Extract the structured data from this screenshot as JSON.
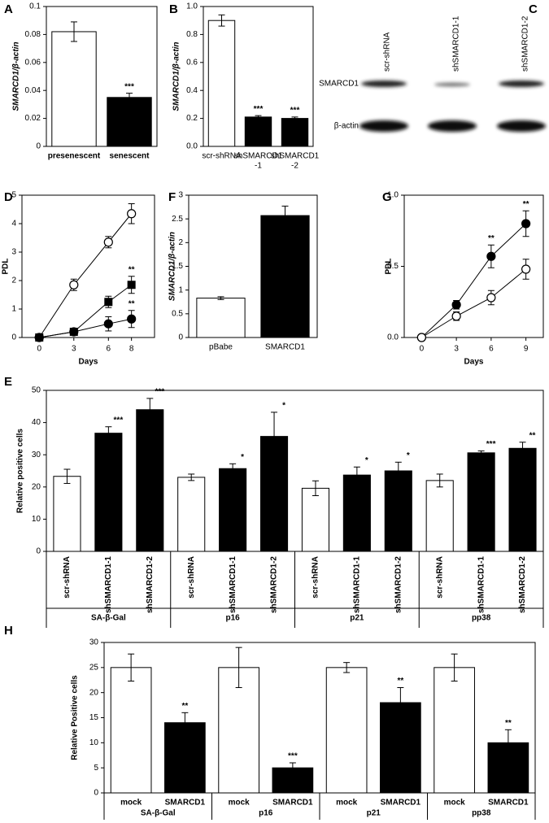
{
  "blot": {
    "panel": "C",
    "lanes": [
      "scr-shRNA",
      "shSMARCD1-1",
      "shSMARCD1-2"
    ],
    "rows": [
      "SMARCD1",
      "β-actin"
    ]
  },
  "chart_data": [
    {
      "panel": "A",
      "type": "bar",
      "ylabel": "SMARCD1/β-actin",
      "categories": [
        "presenescent",
        "senescent"
      ],
      "values": [
        0.082,
        0.035
      ],
      "errors": [
        0.007,
        0.003
      ],
      "colors": [
        "#ffffff",
        "#000000"
      ],
      "significance": [
        null,
        "***"
      ],
      "ylim": [
        0,
        0.1
      ],
      "yticks": [
        0,
        0.02,
        0.04,
        0.06,
        0.08,
        0.1
      ]
    },
    {
      "panel": "B",
      "type": "bar",
      "ylabel": "SMARCD1/β-actin",
      "categories": [
        "scr-shRNA",
        [
          "shSMARCD1",
          "-1"
        ],
        [
          "shSMARCD1",
          "-2"
        ]
      ],
      "values": [
        0.9,
        0.21,
        0.2
      ],
      "errors": [
        0.04,
        0.01,
        0.01
      ],
      "colors": [
        "#ffffff",
        "#000000",
        "#000000"
      ],
      "significance": [
        null,
        "***",
        "***"
      ],
      "ylim": [
        0,
        1
      ],
      "yticks": [
        {
          "value": 0,
          "label": "0.0"
        },
        0.2,
        0.4,
        0.6,
        0.8,
        {
          "value": 1,
          "label": "1.0"
        }
      ]
    },
    {
      "panel": "D",
      "type": "line",
      "xlabel": "Days",
      "ylabel": "PDL",
      "x": [
        0,
        3,
        6,
        8
      ],
      "xlim": [
        -1.5,
        10
      ],
      "xticks": [
        0,
        3,
        6,
        8
      ],
      "ylim": [
        0,
        5
      ],
      "yticks": [
        0,
        1,
        2,
        3,
        4,
        5
      ],
      "series": [
        {
          "marker": "circle",
          "color": "#ffffff",
          "values": [
            0,
            1.85,
            3.35,
            4.35
          ],
          "errors": [
            0.05,
            0.2,
            0.2,
            0.35
          ]
        },
        {
          "marker": "square",
          "color": "#000000",
          "values": [
            0,
            0.2,
            1.25,
            1.85
          ],
          "errors": [
            0.05,
            0.05,
            0.2,
            0.3
          ],
          "significance": [
            null,
            null,
            null,
            "**"
          ]
        },
        {
          "marker": "circle",
          "color": "#000000",
          "values": [
            0,
            0.2,
            0.48,
            0.65
          ],
          "errors": [
            0.05,
            0.05,
            0.25,
            0.3
          ],
          "significance": [
            null,
            null,
            null,
            "**"
          ]
        }
      ]
    },
    {
      "panel": "F",
      "type": "bar",
      "ylabel": "SMARCD1/β-actin",
      "categories": [
        "pBabe",
        "SMARCD1"
      ],
      "values": [
        0.83,
        2.57
      ],
      "errors": [
        0.03,
        0.2
      ],
      "colors": [
        "#ffffff",
        "#000000"
      ],
      "ylim": [
        0,
        3
      ],
      "yticks": [
        0,
        0.5,
        1,
        1.5,
        2,
        2.5,
        3
      ]
    },
    {
      "panel": "G",
      "type": "line",
      "xlabel": "Days",
      "ylabel": "PDL",
      "x": [
        0,
        3,
        6,
        9
      ],
      "xlim": [
        -1.5,
        10.5
      ],
      "xticks": [
        0,
        3,
        6,
        9
      ],
      "ylim": [
        0,
        1
      ],
      "yticks": [
        {
          "value": 0,
          "label": "0.0"
        },
        0.5,
        {
          "value": 1,
          "label": "1.0"
        }
      ],
      "series": [
        {
          "marker": "circle",
          "color": "#000000",
          "values": [
            0,
            0.23,
            0.57,
            0.8
          ],
          "errors": [
            0.01,
            0.03,
            0.08,
            0.09
          ],
          "significance": [
            null,
            null,
            "**",
            "**"
          ]
        },
        {
          "marker": "circle",
          "color": "#ffffff",
          "values": [
            0,
            0.15,
            0.28,
            0.48
          ],
          "errors": [
            0.01,
            0.03,
            0.05,
            0.07
          ]
        }
      ]
    },
    {
      "panel": "E",
      "type": "bar",
      "ylabel": "Relative positive cells",
      "categories": [
        "scr-shRNA",
        "shSMARCD1-1",
        "shSMARCD1-2",
        "scr-shRNA",
        "shSMARCD1-1",
        "shSMARCD1-2",
        "scr-shRNA",
        "shSMARCD1-1",
        "shSMARCD1-2",
        "scr-shRNA",
        "shSMARCD1-1",
        "shSMARCD1-2"
      ],
      "groups": [
        "SA-β-Gal",
        "p16",
        "p21",
        "pp38"
      ],
      "values": [
        23.3,
        36.7,
        44,
        23,
        25.7,
        35.7,
        19.6,
        23.7,
        25,
        22,
        30.6,
        32
      ],
      "errors": [
        2.2,
        2,
        3.5,
        1,
        1.5,
        7.5,
        2.3,
        2.5,
        2.7,
        2,
        0.6,
        1.9
      ],
      "colors": [
        "#ffffff",
        "#000000",
        "#000000",
        "#ffffff",
        "#000000",
        "#000000",
        "#ffffff",
        "#000000",
        "#000000",
        "#ffffff",
        "#000000",
        "#000000"
      ],
      "significance": [
        null,
        "***",
        "***",
        null,
        "*",
        "*",
        null,
        "*",
        "*",
        null,
        "***",
        "**"
      ],
      "ylim": [
        0,
        50
      ],
      "yticks": [
        0,
        10,
        20,
        30,
        40,
        50
      ]
    },
    {
      "panel": "H",
      "type": "bar",
      "ylabel": "Relative Positive cells",
      "categories": [
        "mock",
        "SMARCD1",
        "mock",
        "SMARCD1",
        "mock",
        "SMARCD1",
        "mock",
        "SMARCD1"
      ],
      "groups": [
        "SA-β-Gal",
        "p16",
        "p21",
        "pp38"
      ],
      "values": [
        25,
        14,
        25,
        5,
        25,
        18,
        25,
        10
      ],
      "errors": [
        2.7,
        2,
        4,
        1,
        1,
        3,
        2.7,
        2.6
      ],
      "colors": [
        "#ffffff",
        "#000000",
        "#ffffff",
        "#000000",
        "#ffffff",
        "#000000",
        "#ffffff",
        "#000000"
      ],
      "significance": [
        null,
        "**",
        null,
        "***",
        null,
        "**",
        null,
        "**"
      ],
      "ylim": [
        0,
        30
      ],
      "yticks": [
        0,
        5,
        10,
        15,
        20,
        25,
        30
      ]
    }
  ]
}
